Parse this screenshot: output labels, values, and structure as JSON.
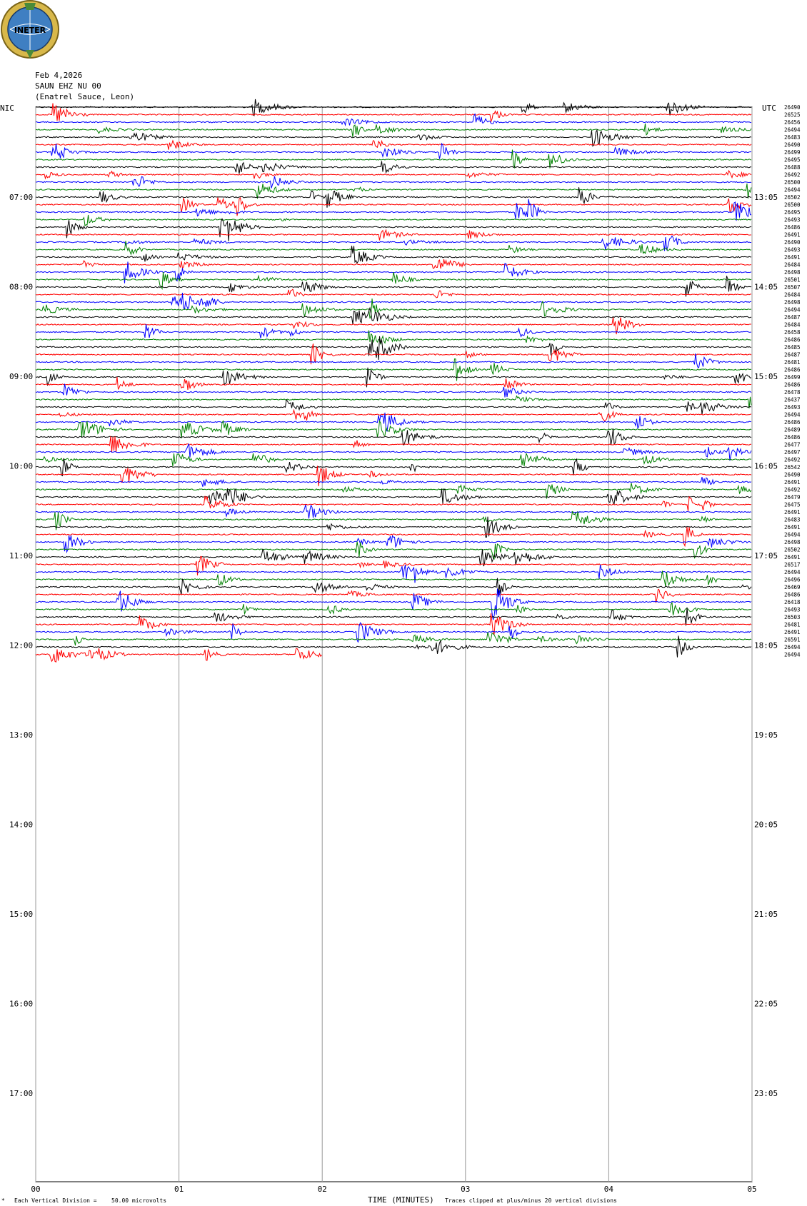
{
  "header": {
    "date": "Feb 4,2026",
    "station": "SAUN EHZ NU 00",
    "location": "(Enatrel Sauce, Leon)",
    "logo_text": "INETER",
    "left_tz": "NIC",
    "right_tz": "UTC"
  },
  "footer": {
    "scale_note": "Each Vertical Division =",
    "scale_value": "50.00 microvolts",
    "xlabel": "TIME (MINUTES)",
    "clip_note": "Traces clipped at plus/minus 20 vertical divisions"
  },
  "chart_data": {
    "type": "line",
    "title": "",
    "xlabel": "TIME (MINUTES)",
    "x_ticks": [
      "00",
      "01",
      "02",
      "03",
      "04",
      "05"
    ],
    "xlim": [
      0,
      5
    ],
    "left_hour_labels": [
      "07:00",
      "08:00",
      "09:00",
      "10:00",
      "11:00",
      "12:00",
      "13:00",
      "14:00",
      "15:00",
      "16:00",
      "17:00"
    ],
    "right_hour_labels": [
      "13:05",
      "14:05",
      "15:05",
      "16:05",
      "17:05",
      "18:05",
      "19:05",
      "20:05",
      "21:05",
      "22:05",
      "23:05"
    ],
    "trace_colors": [
      "#000000",
      "#ff0000",
      "#0000ff",
      "#008000"
    ],
    "trace_count": 74,
    "trace_interval_minutes": 5,
    "last_trace_end_minute": 2.0,
    "trace_values": [
      26490,
      26525,
      26456,
      26494,
      26483,
      26490,
      26499,
      26495,
      26488,
      26492,
      26500,
      26494,
      26502,
      26500,
      26495,
      26493,
      26486,
      26491,
      26490,
      26493,
      26491,
      26484,
      26498,
      26501,
      26507,
      26484,
      26498,
      26494,
      26487,
      26484,
      26458,
      26486,
      26485,
      26487,
      26481,
      26486,
      26499,
      26486,
      26478,
      26437,
      26493,
      26494,
      26486,
      26489,
      26486,
      26477,
      26497,
      26492,
      26542,
      26490,
      26491,
      26492,
      26479,
      26475,
      26491,
      26483,
      26491,
      26494,
      26498,
      26502,
      26491,
      26517,
      26494,
      26496,
      26469,
      26486,
      26418,
      26493,
      26503,
      26481,
      26491,
      26591,
      26494,
      26494
    ]
  }
}
